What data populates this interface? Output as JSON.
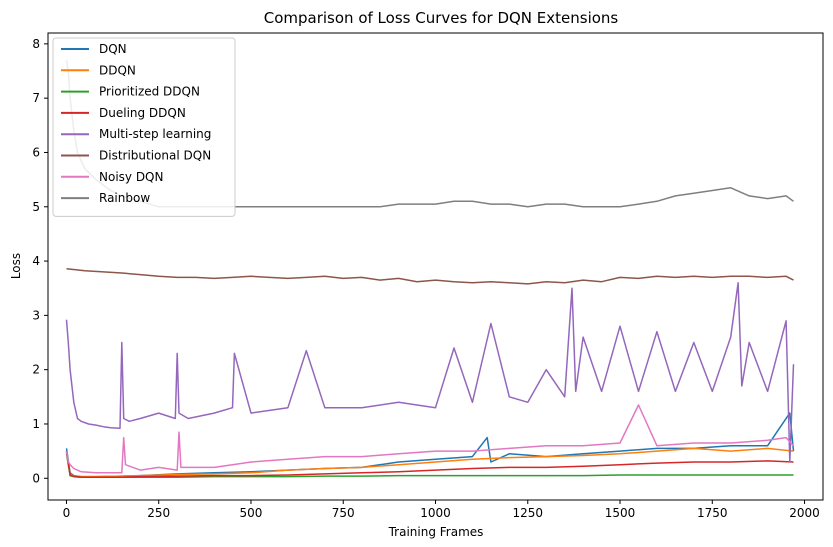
{
  "chart_data": {
    "type": "line",
    "title": "Comparison of Loss Curves for DQN Extensions",
    "xlabel": "Training Frames",
    "ylabel": "Loss",
    "xlim": [
      -50,
      2050
    ],
    "ylim": [
      -0.4,
      8.2
    ],
    "x_ticks": [
      0,
      250,
      500,
      750,
      1000,
      1250,
      1500,
      1750,
      2000
    ],
    "y_ticks": [
      0,
      1,
      2,
      3,
      4,
      5,
      6,
      7,
      8
    ],
    "grid": false,
    "legend_position": "top-left",
    "series": [
      {
        "name": "DQN",
        "color": "#1f77b4",
        "x": [
          0,
          10,
          20,
          40,
          80,
          150,
          200,
          300,
          400,
          500,
          600,
          700,
          800,
          900,
          1000,
          1100,
          1140,
          1150,
          1200,
          1300,
          1400,
          1500,
          1600,
          1700,
          1800,
          1900,
          1960,
          1970
        ],
        "y": [
          0.55,
          0.1,
          0.05,
          0.03,
          0.03,
          0.04,
          0.05,
          0.08,
          0.1,
          0.12,
          0.15,
          0.18,
          0.2,
          0.3,
          0.35,
          0.4,
          0.75,
          0.3,
          0.45,
          0.4,
          0.45,
          0.5,
          0.55,
          0.55,
          0.6,
          0.6,
          1.2,
          0.5
        ]
      },
      {
        "name": "DDQN",
        "color": "#ff7f0e",
        "x": [
          0,
          10,
          20,
          40,
          80,
          150,
          200,
          300,
          400,
          500,
          600,
          700,
          800,
          900,
          1000,
          1100,
          1200,
          1300,
          1400,
          1500,
          1600,
          1700,
          1800,
          1900,
          1970
        ],
        "y": [
          0.5,
          0.08,
          0.04,
          0.03,
          0.03,
          0.04,
          0.05,
          0.07,
          0.08,
          0.1,
          0.15,
          0.18,
          0.2,
          0.25,
          0.3,
          0.35,
          0.38,
          0.4,
          0.42,
          0.45,
          0.5,
          0.55,
          0.5,
          0.55,
          0.5
        ]
      },
      {
        "name": "Prioritized DDQN",
        "color": "#2ca02c",
        "x": [
          0,
          10,
          20,
          40,
          80,
          150,
          200,
          300,
          400,
          500,
          600,
          700,
          800,
          900,
          1000,
          1100,
          1200,
          1300,
          1400,
          1500,
          1600,
          1700,
          1800,
          1900,
          1970
        ],
        "y": [
          0.45,
          0.05,
          0.03,
          0.02,
          0.02,
          0.02,
          0.02,
          0.02,
          0.03,
          0.03,
          0.03,
          0.04,
          0.04,
          0.05,
          0.05,
          0.05,
          0.05,
          0.05,
          0.05,
          0.06,
          0.06,
          0.06,
          0.06,
          0.06,
          0.06
        ]
      },
      {
        "name": "Dueling DDQN",
        "color": "#d62728",
        "x": [
          0,
          10,
          20,
          40,
          80,
          150,
          200,
          300,
          400,
          500,
          600,
          700,
          800,
          900,
          1000,
          1100,
          1200,
          1300,
          1400,
          1500,
          1600,
          1700,
          1800,
          1900,
          1970
        ],
        "y": [
          0.5,
          0.06,
          0.03,
          0.02,
          0.02,
          0.02,
          0.03,
          0.04,
          0.05,
          0.05,
          0.06,
          0.08,
          0.1,
          0.12,
          0.15,
          0.18,
          0.2,
          0.2,
          0.22,
          0.25,
          0.28,
          0.3,
          0.3,
          0.32,
          0.3
        ]
      },
      {
        "name": "Multi-step learning",
        "color": "#9467bd",
        "x": [
          0,
          5,
          10,
          20,
          30,
          40,
          60,
          80,
          100,
          120,
          145,
          150,
          155,
          170,
          200,
          250,
          295,
          300,
          305,
          330,
          400,
          450,
          455,
          500,
          600,
          650,
          700,
          800,
          900,
          1000,
          1050,
          1100,
          1150,
          1200,
          1250,
          1300,
          1350,
          1370,
          1380,
          1400,
          1450,
          1500,
          1550,
          1600,
          1650,
          1700,
          1750,
          1800,
          1820,
          1830,
          1850,
          1900,
          1950,
          1960,
          1970
        ],
        "y": [
          2.92,
          2.5,
          2.0,
          1.4,
          1.1,
          1.05,
          1.0,
          0.98,
          0.95,
          0.93,
          0.92,
          2.5,
          1.1,
          1.05,
          1.1,
          1.2,
          1.1,
          2.3,
          1.2,
          1.1,
          1.2,
          1.3,
          2.3,
          1.2,
          1.3,
          2.35,
          1.3,
          1.3,
          1.4,
          1.3,
          2.4,
          1.4,
          2.85,
          1.5,
          1.4,
          2.0,
          1.5,
          3.5,
          1.6,
          2.6,
          1.6,
          2.8,
          1.6,
          2.7,
          1.6,
          2.5,
          1.6,
          2.6,
          3.6,
          1.7,
          2.5,
          1.6,
          2.9,
          0.3,
          2.1
        ]
      },
      {
        "name": "Distributional DQN",
        "color": "#8c564b",
        "x": [
          0,
          50,
          100,
          150,
          200,
          250,
          300,
          350,
          400,
          450,
          500,
          550,
          600,
          650,
          700,
          750,
          800,
          850,
          900,
          950,
          1000,
          1050,
          1100,
          1150,
          1200,
          1250,
          1300,
          1350,
          1400,
          1450,
          1500,
          1550,
          1600,
          1650,
          1700,
          1750,
          1800,
          1850,
          1900,
          1950,
          1970
        ],
        "y": [
          3.86,
          3.82,
          3.8,
          3.78,
          3.75,
          3.72,
          3.7,
          3.7,
          3.68,
          3.7,
          3.72,
          3.7,
          3.68,
          3.7,
          3.72,
          3.68,
          3.7,
          3.65,
          3.68,
          3.62,
          3.65,
          3.62,
          3.6,
          3.62,
          3.6,
          3.58,
          3.62,
          3.6,
          3.65,
          3.62,
          3.7,
          3.68,
          3.72,
          3.7,
          3.72,
          3.7,
          3.72,
          3.72,
          3.7,
          3.72,
          3.65
        ]
      },
      {
        "name": "Noisy DQN",
        "color": "#e377c2",
        "x": [
          0,
          5,
          10,
          20,
          40,
          80,
          120,
          150,
          155,
          160,
          200,
          250,
          300,
          305,
          310,
          400,
          450,
          500,
          600,
          700,
          800,
          900,
          1000,
          1100,
          1200,
          1300,
          1400,
          1500,
          1550,
          1600,
          1700,
          1800,
          1900,
          1950,
          1970
        ],
        "y": [
          0.5,
          0.3,
          0.25,
          0.18,
          0.12,
          0.1,
          0.1,
          0.1,
          0.75,
          0.25,
          0.15,
          0.2,
          0.15,
          0.85,
          0.2,
          0.2,
          0.25,
          0.3,
          0.35,
          0.4,
          0.4,
          0.45,
          0.5,
          0.5,
          0.55,
          0.6,
          0.6,
          0.65,
          1.35,
          0.6,
          0.65,
          0.65,
          0.7,
          0.75,
          0.6
        ]
      },
      {
        "name": "Rainbow",
        "color": "#7f7f7f",
        "x": [
          0,
          5,
          10,
          20,
          30,
          50,
          80,
          120,
          150,
          200,
          250,
          300,
          350,
          400,
          450,
          500,
          550,
          600,
          650,
          700,
          750,
          800,
          850,
          900,
          950,
          1000,
          1050,
          1100,
          1150,
          1200,
          1250,
          1300,
          1350,
          1400,
          1450,
          1500,
          1550,
          1600,
          1650,
          1700,
          1750,
          1800,
          1850,
          1900,
          1950,
          1970
        ],
        "y": [
          7.7,
          7.5,
          7.0,
          6.4,
          6.0,
          5.7,
          5.5,
          5.3,
          5.2,
          5.1,
          5.0,
          5.0,
          5.0,
          5.0,
          5.0,
          5.0,
          5.0,
          5.0,
          5.0,
          5.0,
          5.0,
          5.0,
          5.0,
          5.05,
          5.05,
          5.05,
          5.1,
          5.1,
          5.05,
          5.05,
          5.0,
          5.05,
          5.05,
          5.0,
          5.0,
          5.0,
          5.05,
          5.1,
          5.2,
          5.25,
          5.3,
          5.35,
          5.2,
          5.15,
          5.2,
          5.1
        ]
      }
    ]
  }
}
